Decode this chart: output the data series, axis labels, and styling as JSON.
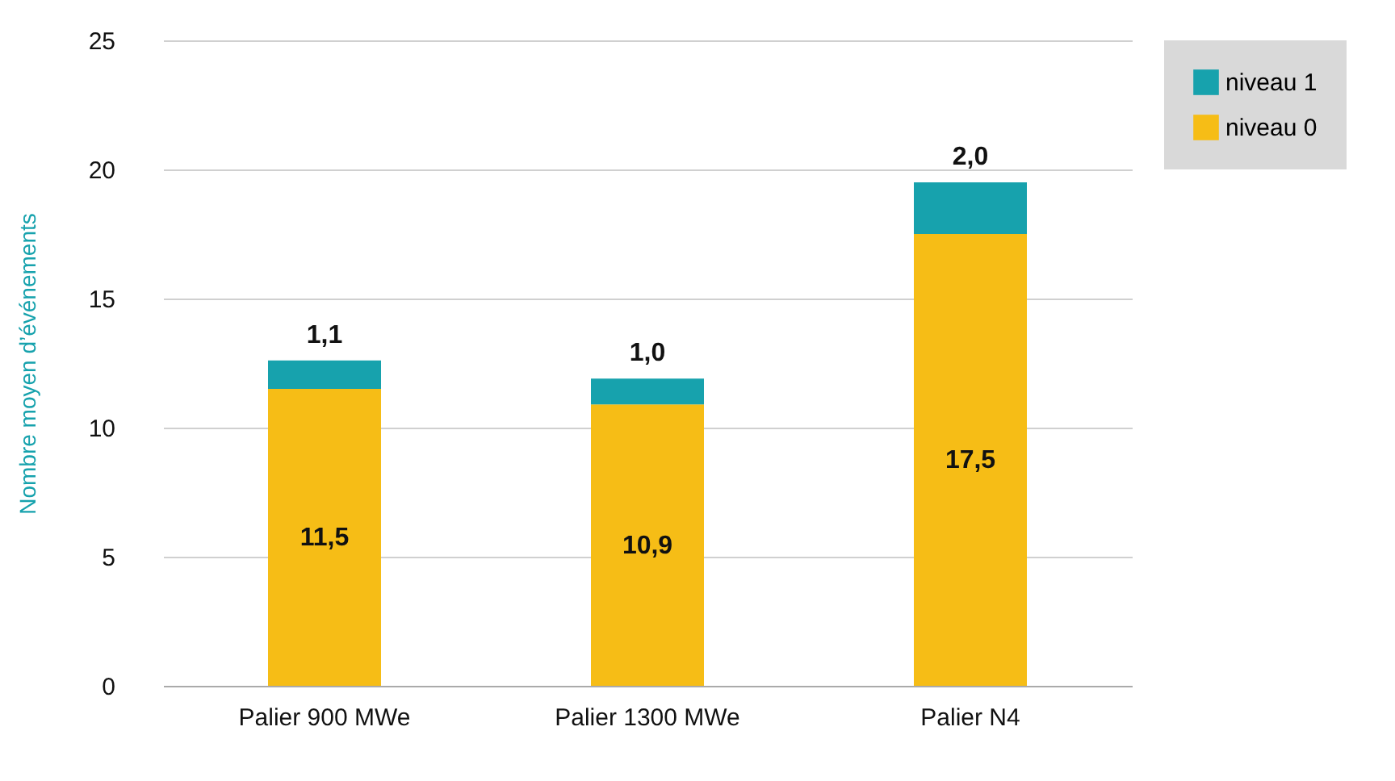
{
  "chart_data": {
    "type": "bar",
    "stacked": true,
    "ylabel": "Nombre moyen d’événements",
    "categories": [
      "Palier 900 MWe",
      "Palier 1300 MWe",
      "Palier N4"
    ],
    "series": [
      {
        "name": "niveau 0",
        "color": "#f6bd16",
        "values": [
          11.5,
          10.9,
          17.5
        ],
        "value_labels": [
          "11,5",
          "10,9",
          "17,5"
        ]
      },
      {
        "name": "niveau 1",
        "color": "#17a2ad",
        "values": [
          1.1,
          1.0,
          2.0
        ],
        "value_labels": [
          "1,1",
          "1,0",
          "2,0"
        ]
      }
    ],
    "ylim": [
      0,
      25
    ],
    "yticks": [
      0,
      5,
      10,
      15,
      20,
      25
    ],
    "grid": "y",
    "legend": "right"
  }
}
